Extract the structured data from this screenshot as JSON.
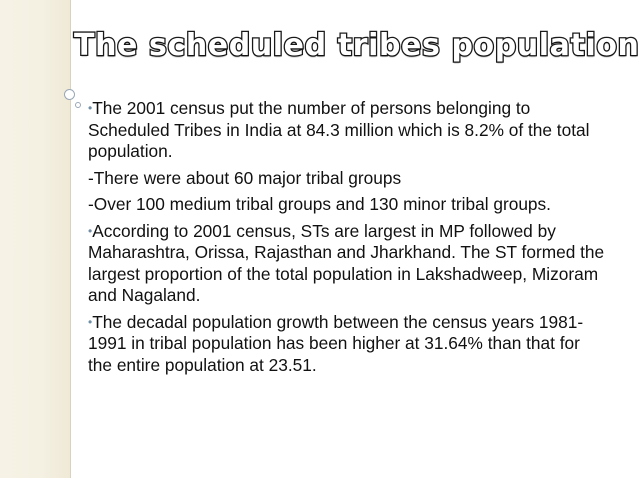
{
  "slide": {
    "title": "The scheduled tribes population",
    "paragraphs": [
      {
        "marker": "•",
        "text": "The 2001 census put the number of persons belonging to Scheduled Tribes in India at 84.3 million which is 8.2% of the total population."
      },
      {
        "marker": "",
        "text": "-There were about 60 major tribal groups"
      },
      {
        "marker": "",
        "text": "-Over 100 medium tribal groups and 130 minor tribal groups."
      },
      {
        "marker": "•",
        "text": "According to 2001 census, STs are largest in MP followed by Maharashtra, Orissa, Rajasthan and Jharkhand. The ST formed the largest proportion of the total population in Lakshadweep, Mizoram and Nagaland."
      },
      {
        "marker": "•",
        "text": "The decadal population growth between the census years 1981-1991 in tribal population has been higher at 31.64% than that for the entire population at 23.51."
      }
    ]
  },
  "colors": {
    "left_band": "#f4f0e2",
    "bullet_accent": "#6f8da4",
    "text": "#111111",
    "title_outline": "#1a1a1a"
  }
}
